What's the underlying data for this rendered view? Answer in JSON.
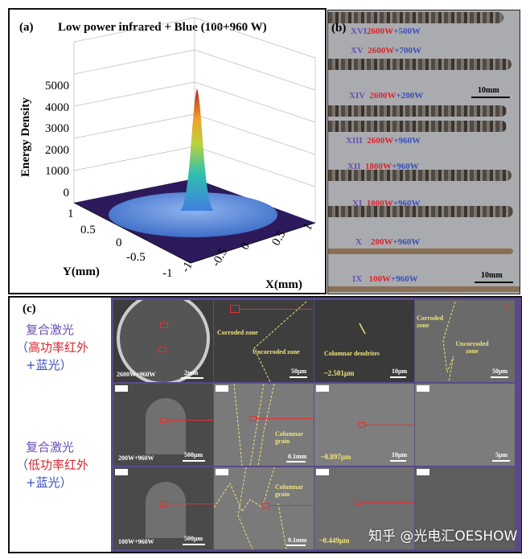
{
  "panel_a": {
    "label": "(a)",
    "title": "Low power infrared + Blue (100+960 W)",
    "z_label": "Energy Density",
    "z_ticks": [
      "5000",
      "4000",
      "3000",
      "2000",
      "1000",
      "0"
    ],
    "y_label": "Y(mm)",
    "y_ticks": [
      "1",
      "0.5",
      "0",
      "-0.5",
      "-1"
    ],
    "x_label": "X(mm)",
    "x_ticks": [
      "1",
      "0.5",
      "0",
      "-0.5",
      "-1"
    ]
  },
  "panel_b": {
    "label": "(b)",
    "tracks": [
      {
        "id": "XVI",
        "red": "2600W",
        "blue": "+500W"
      },
      {
        "id": "XV",
        "red": "2600W",
        "blue": "+700W"
      },
      {
        "id": "XIV",
        "red": "2600W",
        "blue": "+200W"
      },
      {
        "id": "XIII",
        "red": "2600W",
        "blue": "+960W"
      },
      {
        "id": "XII",
        "red": "1800W",
        "blue": "+960W"
      },
      {
        "id": "XI",
        "red": "1000W",
        "blue": "+960W"
      },
      {
        "id": "X",
        "red": "200W",
        "blue": "+960W"
      },
      {
        "id": "IX",
        "red": "100W",
        "blue": "+960W"
      }
    ],
    "scale_top": "10mm",
    "scale_bottom": "10mm"
  },
  "panel_c": {
    "label": "(c)",
    "group1": {
      "l1": "复合激光",
      "l2a": "（",
      "l2b": "高功率红外",
      "l3a": "+蓝光",
      "l3b": "）"
    },
    "group2": {
      "l1": "复合激光",
      "l2a": "（",
      "l2b": "低功率红外",
      "l3a": "+蓝光",
      "l3b": "）"
    },
    "row1": {
      "power": "2600W+960W",
      "scale1": "2mm",
      "corroded": "Corroded zone",
      "uncorroded": "Uncorroded zone",
      "scale2": "50μm",
      "dendrites": "Columnar dendrites",
      "size": "~2.501μm",
      "scale3": "10μm",
      "corroded2": "Corroded zone",
      "uncorroded2": "Uncorroded zone",
      "scale4": "50μm",
      "mark": "5"
    },
    "row2": {
      "power": "200W+960W",
      "scale1": "500μm",
      "grain": "Columnar grain",
      "scale2": "0.1mm",
      "size": "~0.897μm",
      "scale3": "10μm",
      "scale4": "5μm"
    },
    "row3": {
      "power": "100W+960W",
      "scale1": "500μm",
      "grain": "Columnar grain",
      "scale2": "0.1mm",
      "size": "~0.449μm"
    }
  },
  "watermark": "知乎 @光电汇OESHOW",
  "colors": {
    "peak": "#b22222",
    "surface_blue": "#4a7fd6",
    "floor": "#2d1a5c",
    "track_red": "#d7262e",
    "track_blue": "#3a4fb5",
    "annotation_yellow": "#f1e27a"
  }
}
